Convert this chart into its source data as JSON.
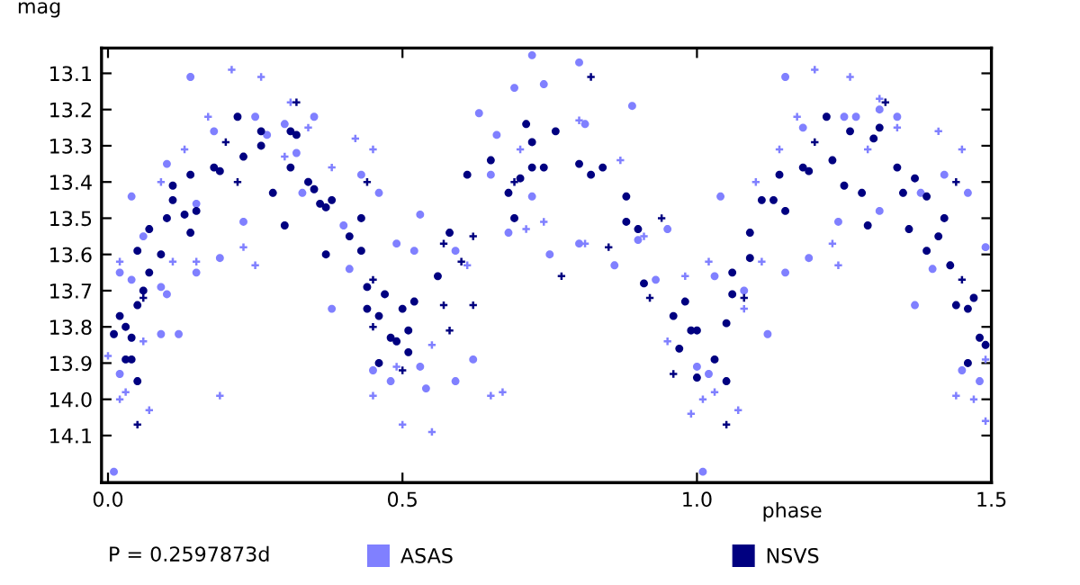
{
  "chart_data": {
    "type": "scatter",
    "xlabel": "phase",
    "ylabel": "mag",
    "annotations": [
      "P = 0.2597873d"
    ],
    "xlim": [
      -0.011,
      1.5
    ],
    "xticks": [
      {
        "value": 0,
        "label": "0.0"
      },
      0.5,
      {
        "value": 1,
        "label": "1.0"
      },
      1.5
    ],
    "ylim": [
      14.23,
      13.03
    ],
    "yticks": [
      13.1,
      13.2,
      13.3,
      13.4,
      13.5,
      13.6,
      13.7,
      13.8,
      13.9,
      {
        "value": 14.0,
        "label": "14.0"
      },
      14.1
    ],
    "grid": false,
    "legend": "bottom",
    "series": [
      {
        "name": "ASAS",
        "color": "#8080ff",
        "marker": "circle",
        "x": [
          0.01,
          0.02,
          0.02,
          0.04,
          0.04,
          0.06,
          0.09,
          0.09,
          0.1,
          0.1,
          0.12,
          0.14,
          0.15,
          0.15,
          0.19,
          0.18,
          0.23,
          0.25,
          0.27,
          0.3,
          0.32,
          0.33,
          0.35,
          0.38,
          0.4,
          0.41,
          0.43,
          0.46,
          0.45,
          0.48,
          0.49,
          0.52,
          0.53,
          0.53,
          0.54,
          0.59,
          0.62,
          0.63,
          0.65,
          0.66,
          0.68,
          0.69,
          0.72,
          0.72,
          0.59,
          0.8,
          0.74,
          0.81,
          0.89,
          0.75,
          0.8,
          0.86,
          0.9,
          0.95,
          0.93,
          1.0,
          1.01,
          1.02,
          1.03,
          1.04,
          1.08,
          1.12,
          1.15,
          1.15,
          1.19,
          1.18,
          1.24,
          1.27,
          1.25,
          1.31,
          1.34,
          1.38,
          1.37,
          1.42,
          1.46,
          1.45,
          1.48,
          1.49,
          1.4,
          1.31
        ],
        "values": [
          14.2,
          13.93,
          13.65,
          13.67,
          13.44,
          13.55,
          13.82,
          13.69,
          13.71,
          13.35,
          13.82,
          13.11,
          13.46,
          13.65,
          13.61,
          13.26,
          13.51,
          13.22,
          13.27,
          13.24,
          13.32,
          13.43,
          13.22,
          13.75,
          13.52,
          13.64,
          13.38,
          13.43,
          13.92,
          13.95,
          13.57,
          13.59,
          13.49,
          13.91,
          13.97,
          13.95,
          13.89,
          13.21,
          13.38,
          13.27,
          13.54,
          13.14,
          13.05,
          13.44,
          13.59,
          13.07,
          13.13,
          13.24,
          13.19,
          13.6,
          13.57,
          13.63,
          13.56,
          13.53,
          13.67,
          13.91,
          14.2,
          13.93,
          13.66,
          13.44,
          13.7,
          13.82,
          13.11,
          13.65,
          13.61,
          13.25,
          13.51,
          13.22,
          13.22,
          13.2,
          13.22,
          13.43,
          13.74,
          13.38,
          13.43,
          13.92,
          13.95,
          13.58,
          13.64,
          13.48
        ]
      },
      {
        "color": "#8080ff",
        "marker": "cross",
        "x": [
          0.0,
          0.02,
          0.03,
          0.02,
          0.07,
          0.06,
          0.09,
          0.11,
          0.13,
          0.15,
          0.17,
          0.19,
          0.21,
          0.23,
          0.25,
          0.26,
          0.3,
          0.31,
          0.34,
          0.38,
          0.42,
          0.45,
          0.45,
          0.49,
          0.5,
          0.55,
          0.55,
          0.58,
          0.61,
          0.65,
          0.67,
          0.71,
          0.7,
          0.74,
          0.8,
          0.81,
          0.87,
          0.91,
          0.95,
          0.98,
          0.99,
          1.01,
          1.03,
          1.02,
          1.07,
          1.08,
          1.1,
          1.11,
          1.14,
          1.17,
          1.2,
          1.23,
          1.24,
          1.26,
          1.29,
          1.31,
          1.34,
          1.41,
          1.45,
          1.44,
          1.47,
          1.49,
          1.49
        ],
        "values": [
          13.88,
          14.0,
          13.98,
          13.62,
          14.03,
          13.84,
          13.4,
          13.62,
          13.31,
          13.62,
          13.22,
          13.99,
          13.09,
          13.58,
          13.63,
          13.11,
          13.33,
          13.18,
          13.25,
          13.36,
          13.28,
          13.31,
          13.99,
          13.91,
          14.07,
          14.09,
          13.85,
          13.54,
          13.63,
          13.99,
          13.98,
          13.53,
          13.31,
          13.51,
          13.23,
          13.57,
          13.34,
          13.55,
          13.84,
          13.66,
          14.04,
          14.0,
          13.98,
          13.62,
          14.03,
          13.75,
          13.4,
          13.62,
          13.31,
          13.22,
          13.09,
          13.57,
          13.63,
          13.11,
          13.31,
          13.17,
          13.25,
          13.26,
          13.31,
          13.99,
          14.0,
          13.89,
          14.06
        ]
      },
      {
        "name": "NSVS",
        "color": "#000080",
        "marker": "circle",
        "x": [
          0.01,
          0.02,
          0.03,
          0.03,
          0.04,
          0.05,
          0.04,
          0.05,
          0.05,
          0.06,
          0.07,
          0.07,
          0.09,
          0.1,
          0.11,
          0.11,
          0.13,
          0.14,
          0.14,
          0.15,
          0.18,
          0.19,
          0.22,
          0.23,
          0.26,
          0.26,
          0.28,
          0.3,
          0.31,
          0.31,
          0.32,
          0.34,
          0.35,
          0.36,
          0.37,
          0.37,
          0.38,
          0.41,
          0.43,
          0.43,
          0.44,
          0.44,
          0.46,
          0.46,
          0.47,
          0.48,
          0.49,
          0.5,
          0.51,
          0.52,
          0.51,
          0.56,
          0.58,
          0.61,
          0.65,
          0.68,
          0.7,
          0.71,
          0.72,
          0.69,
          0.72,
          0.74,
          0.76,
          0.8,
          0.82,
          0.84,
          0.88,
          0.88,
          0.9,
          0.91,
          0.96,
          0.97,
          0.98,
          0.99,
          1.0,
          1.0,
          1.03,
          1.05,
          1.05,
          1.06,
          1.06,
          1.09,
          1.09,
          1.11,
          1.13,
          1.14,
          1.15,
          1.18,
          1.19,
          1.22,
          1.23,
          1.26,
          1.25,
          1.28,
          1.29,
          1.3,
          1.31,
          1.34,
          1.35,
          1.36,
          1.37,
          1.39,
          1.39,
          1.41,
          1.42,
          1.43,
          1.44,
          1.46,
          1.47,
          1.48,
          1.49,
          1.46
        ],
        "values": [
          13.82,
          13.77,
          13.8,
          13.89,
          13.89,
          13.95,
          13.83,
          13.74,
          13.59,
          13.7,
          13.65,
          13.53,
          13.6,
          13.5,
          13.41,
          13.45,
          13.49,
          13.54,
          13.38,
          13.48,
          13.36,
          13.37,
          13.22,
          13.33,
          13.3,
          13.26,
          13.43,
          13.52,
          13.26,
          13.36,
          13.27,
          13.4,
          13.42,
          13.46,
          13.47,
          13.6,
          13.45,
          13.55,
          13.5,
          13.59,
          13.75,
          13.69,
          13.77,
          13.9,
          13.71,
          13.83,
          13.84,
          13.75,
          13.81,
          13.73,
          13.87,
          13.66,
          13.54,
          13.38,
          13.34,
          13.43,
          13.39,
          13.24,
          13.36,
          13.5,
          13.29,
          13.36,
          13.26,
          13.35,
          13.38,
          13.36,
          13.44,
          13.51,
          13.53,
          13.68,
          13.77,
          13.86,
          13.73,
          13.81,
          13.94,
          13.81,
          13.89,
          13.95,
          13.79,
          13.71,
          13.65,
          13.61,
          13.54,
          13.45,
          13.45,
          13.38,
          13.48,
          13.36,
          13.37,
          13.22,
          13.34,
          13.26,
          13.41,
          13.43,
          13.52,
          13.28,
          13.25,
          13.36,
          13.43,
          13.53,
          13.39,
          13.44,
          13.59,
          13.55,
          13.5,
          13.63,
          13.74,
          13.75,
          13.72,
          13.83,
          13.85,
          13.9
        ]
      },
      {
        "color": "#000080",
        "marker": "cross",
        "x": [
          0.05,
          0.06,
          0.2,
          0.22,
          0.32,
          0.44,
          0.45,
          0.45,
          0.5,
          0.57,
          0.57,
          0.58,
          0.6,
          0.62,
          0.62,
          0.69,
          0.82,
          0.77,
          0.85,
          0.94,
          0.92,
          0.96,
          1.05,
          1.08,
          1.2,
          1.32,
          1.44,
          1.45
        ],
        "values": [
          14.07,
          13.72,
          13.29,
          13.4,
          13.18,
          13.4,
          13.67,
          13.8,
          13.92,
          13.74,
          13.57,
          13.81,
          13.62,
          13.74,
          13.55,
          13.4,
          13.11,
          13.66,
          13.58,
          13.5,
          13.72,
          13.93,
          14.07,
          13.72,
          13.29,
          13.18,
          13.4,
          13.67
        ]
      }
    ]
  }
}
